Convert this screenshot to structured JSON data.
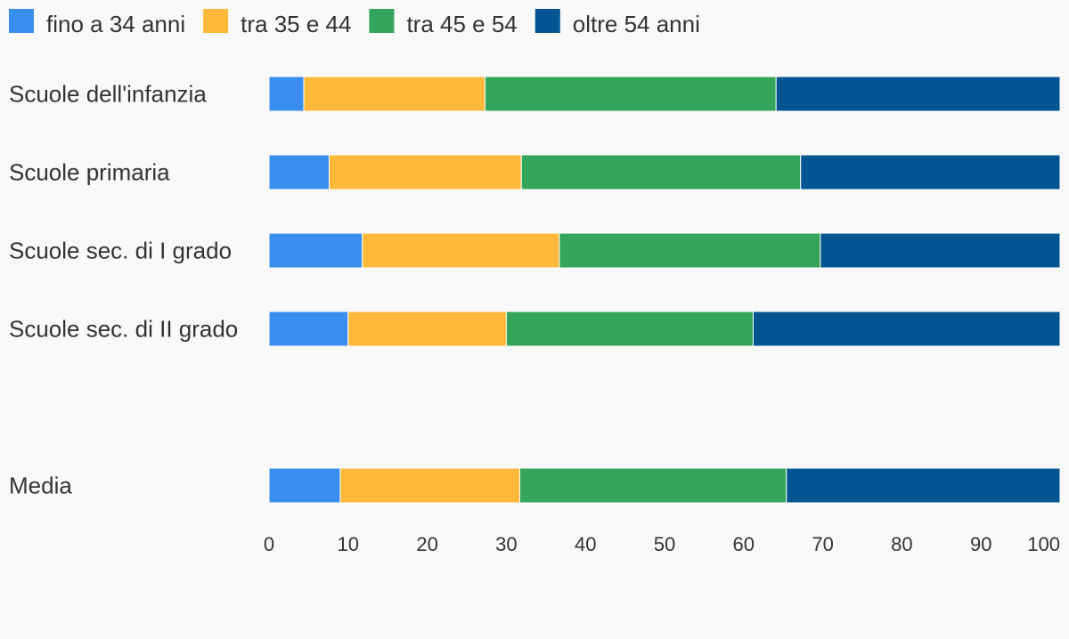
{
  "chart_data": {
    "type": "bar",
    "orientation": "horizontal",
    "stacked": true,
    "categories": [
      "Scuole dell'infanzia",
      "Scuole primaria",
      "Scuole sec. di I grado",
      "Scuole sec. di II grado",
      "",
      "Media"
    ],
    "series": [
      {
        "name": "fino a 34 anni",
        "color": "#3a8ef0",
        "values": [
          4.4,
          7.6,
          11.8,
          10.0,
          null,
          9.0
        ]
      },
      {
        "name": "tra 35 e 44",
        "color": "#ffb93a",
        "values": [
          22.9,
          24.3,
          24.9,
          20.0,
          null,
          22.7
        ]
      },
      {
        "name": "tra 45 e 54",
        "color": "#34a55a",
        "values": [
          36.8,
          35.3,
          33.0,
          31.2,
          null,
          33.7
        ]
      },
      {
        "name": "oltre 54 anni",
        "color": "#035592",
        "values": [
          35.9,
          32.8,
          30.3,
          38.8,
          null,
          34.6
        ]
      }
    ],
    "title": "",
    "xlabel": "",
    "ylabel": "",
    "xlim": [
      0,
      100
    ],
    "xticks": [
      0,
      10,
      20,
      30,
      40,
      50,
      60,
      70,
      80,
      90,
      100
    ],
    "grid": false,
    "legend": "top-left"
  }
}
